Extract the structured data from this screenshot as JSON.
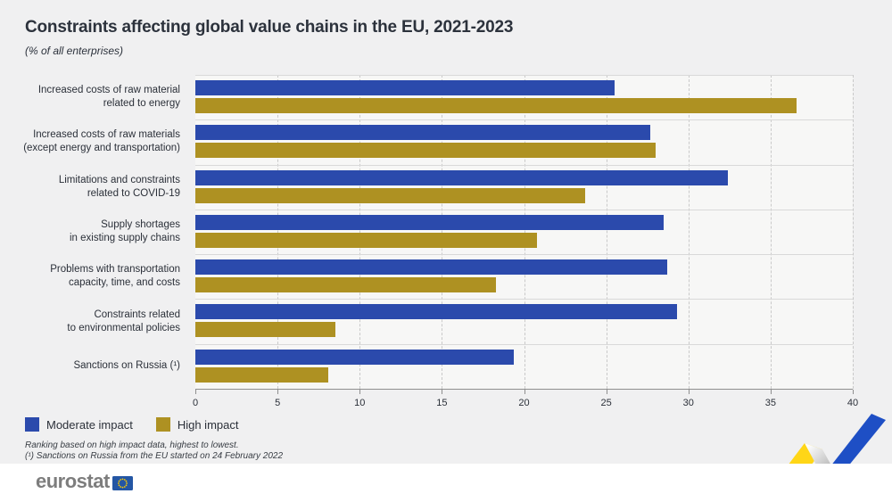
{
  "header": {
    "title": "Constraints affecting global value chains in the EU, 2021-2023",
    "subtitle": "(% of all enterprises)"
  },
  "chart_data": {
    "type": "bar",
    "orientation": "horizontal",
    "title": "Constraints affecting global value chains in the EU, 2021-2023",
    "subtitle": "(% of all enterprises)",
    "unit": "% of all enterprises",
    "categories": [
      [
        "Increased costs of raw material",
        "related to energy"
      ],
      [
        "Increased costs of raw materials",
        "(except energy and transportation)"
      ],
      [
        "Limitations and constraints",
        "related to COVID-19"
      ],
      [
        "Supply shortages",
        "in existing supply chains"
      ],
      [
        "Problems with transportation",
        "capacity, time, and costs"
      ],
      [
        "Constraints related",
        "to environmental policies"
      ],
      [
        "Sanctions on Russia (¹)"
      ]
    ],
    "series": [
      {
        "name": "Moderate impact",
        "color": "#2B4AAC",
        "values": [
          25.5,
          27.7,
          32.4,
          28.5,
          28.7,
          29.3,
          19.4
        ]
      },
      {
        "name": "High impact",
        "color": "#AE9122",
        "values": [
          36.6,
          28.0,
          23.7,
          20.8,
          18.3,
          8.5,
          8.1
        ]
      }
    ],
    "xlim": [
      0,
      40
    ],
    "x_ticks": [
      0,
      5,
      10,
      15,
      20,
      25,
      30,
      35,
      40
    ],
    "grid": "vertical-dashed",
    "legend_position": "bottom-left",
    "ranking_note": "Ranking based on high impact data, highest to lowest."
  },
  "legend": {
    "items": [
      {
        "label": "Moderate impact",
        "color": "#2B4AAC"
      },
      {
        "label": "High impact",
        "color": "#AE9122"
      }
    ]
  },
  "footnotes": {
    "line1": "Ranking based on high impact data, highest to lowest.",
    "line2": "(¹) Sanctions on Russia from the EU started on 24 February 2022"
  },
  "footer": {
    "brand": "eurostat"
  },
  "colors": {
    "background": "#F0F0F1",
    "plot_background": "#F7F7F6",
    "moderate_blue": "#2B4AAC",
    "high_gold": "#AE9122",
    "axis": "#8F8F8F",
    "gridline": "#C9C9C9",
    "row_separator": "#D9D9D9",
    "title_text": "#2C323C",
    "label_text": "#2B3039",
    "footnote_text": "#383D44",
    "eurostat_gray": "#7D7D7D",
    "flag_blue": "#2456A4",
    "flag_stars": "#FFCC00",
    "ribbon_yellow": "#FFD617",
    "ribbon_blue": "#1E4FC5"
  }
}
